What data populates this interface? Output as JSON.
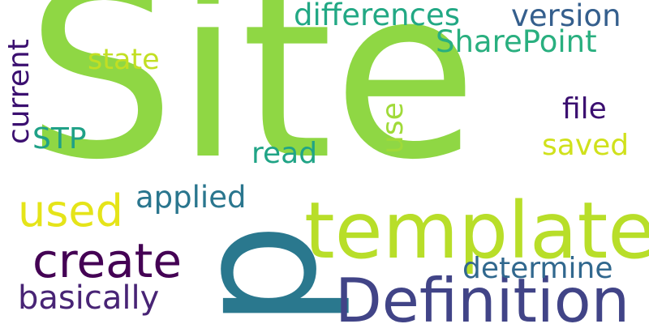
{
  "words": {
    "site": {
      "text": "Site",
      "color": "#8fd744"
    },
    "p": {
      "text": "p",
      "color": "#2a788e"
    },
    "template": {
      "text": "template",
      "color": "#b8de29"
    },
    "definition": {
      "text": "Definition",
      "color": "#414487"
    },
    "create": {
      "text": "create",
      "color": "#440154"
    },
    "used": {
      "text": "used",
      "color": "#e5e419"
    },
    "basically": {
      "text": "basically",
      "color": "#482475"
    },
    "applied": {
      "text": "applied",
      "color": "#2a768e"
    },
    "determine": {
      "text": "determine",
      "color": "#31688e"
    },
    "differences": {
      "text": "differences",
      "color": "#22a884"
    },
    "version": {
      "text": "version",
      "color": "#355f8d"
    },
    "sharepoint": {
      "text": "SharePoint",
      "color": "#29af7f"
    },
    "state": {
      "text": "state",
      "color": "#c2df23"
    },
    "current": {
      "text": "current",
      "color": "#3b0f70"
    },
    "stp": {
      "text": "STP",
      "color": "#1fa187"
    },
    "read": {
      "text": "read",
      "color": "#20a486"
    },
    "use": {
      "text": "use",
      "color": "#a0da39"
    },
    "file": {
      "text": "file",
      "color": "#3b0f70"
    },
    "saved": {
      "text": "saved",
      "color": "#d0e11c"
    }
  }
}
